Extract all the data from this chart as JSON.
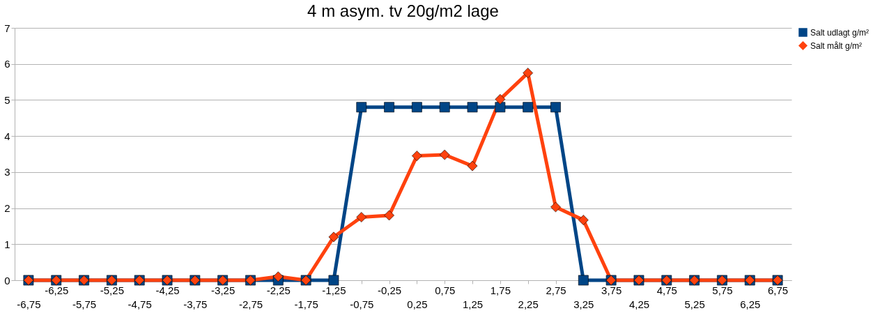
{
  "chart_data": {
    "type": "line",
    "title": "4 m asym. tv 20g/m2 lage",
    "categories": [
      "-6,75",
      "-6,25",
      "-5,75",
      "-5,25",
      "-4,75",
      "-4,25",
      "-3,75",
      "-3,25",
      "-2,75",
      "-2,25",
      "-1,75",
      "-1,25",
      "-0,75",
      "-0,25",
      "0,25",
      "0,75",
      "1,25",
      "1,75",
      "2,25",
      "2,75",
      "3,25",
      "3,75",
      "4,25",
      "4,75",
      "5,25",
      "5,75",
      "6,25",
      "6,75"
    ],
    "series": [
      {
        "name": "Salt udlagt g/m²",
        "color": "#004586",
        "marker": "square",
        "values": [
          0,
          0,
          0,
          0,
          0,
          0,
          0,
          0,
          0,
          0,
          0,
          0,
          4.8,
          4.8,
          4.8,
          4.8,
          4.8,
          4.8,
          4.8,
          4.8,
          0,
          0,
          0,
          0,
          0,
          0,
          0,
          0
        ]
      },
      {
        "name": "Salt målt g/m²",
        "color": "#ff420e",
        "marker": "diamond",
        "values": [
          0,
          0,
          0,
          0,
          0,
          0,
          0,
          0,
          0,
          0.1,
          0,
          1.2,
          1.75,
          1.8,
          3.45,
          3.48,
          3.17,
          5.02,
          5.75,
          2.03,
          1.67,
          0,
          0,
          0,
          0,
          0,
          0,
          0
        ]
      }
    ],
    "ylim": [
      0,
      7
    ],
    "yticks": [
      0,
      1,
      2,
      3,
      4,
      5,
      6,
      7
    ],
    "grid": "y",
    "legend": "right",
    "line_style": "solid"
  }
}
